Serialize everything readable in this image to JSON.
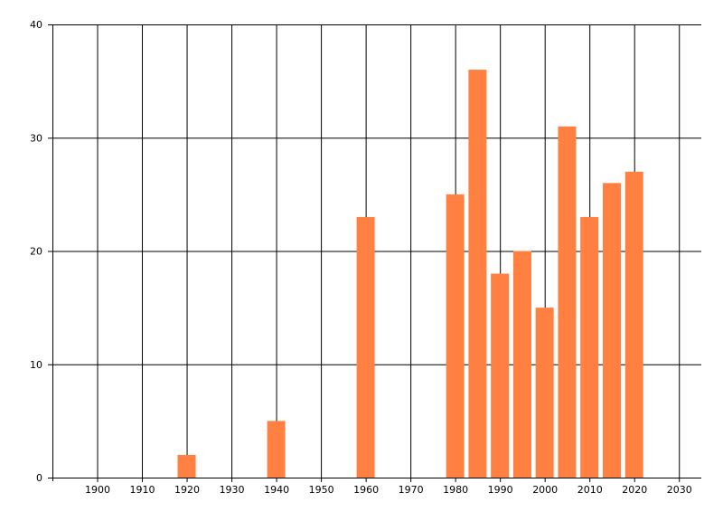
{
  "chart_data": {
    "type": "bar",
    "x": [
      1920,
      1940,
      1960,
      1980,
      1985,
      1990,
      1995,
      2000,
      2005,
      2010,
      2015,
      2020
    ],
    "values": [
      2,
      5,
      23,
      25,
      36,
      18,
      20,
      15,
      31,
      23,
      26,
      27
    ],
    "title": "",
    "xlabel": "",
    "ylabel": "",
    "xlim": [
      1890,
      2035
    ],
    "ylim": [
      0,
      40
    ],
    "x_ticks": [
      1900,
      1910,
      1920,
      1930,
      1940,
      1950,
      1960,
      1970,
      1980,
      1990,
      2000,
      2010,
      2020,
      2030
    ],
    "y_ticks": [
      0,
      10,
      20,
      30,
      40
    ],
    "grid": true,
    "bar_color": "#FF8040",
    "grid_color": "#000000"
  }
}
